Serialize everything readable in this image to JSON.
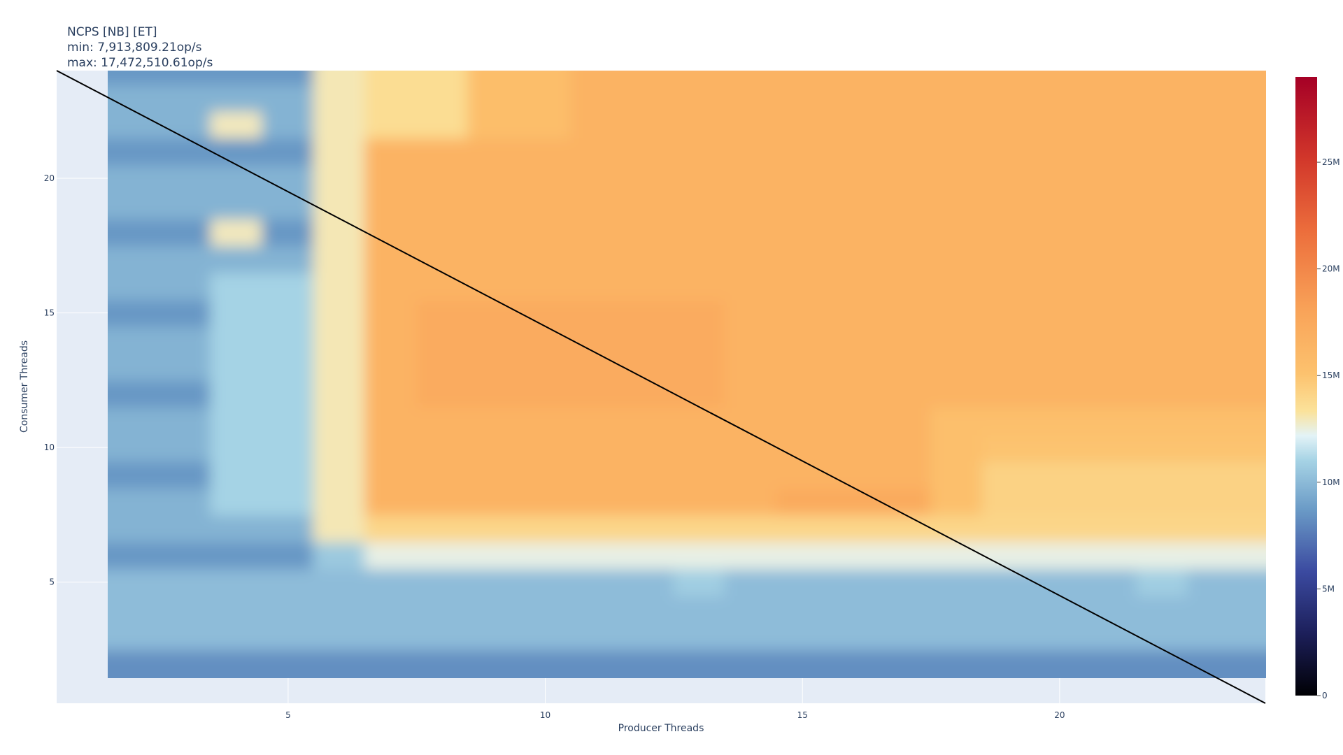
{
  "chart_data": {
    "type": "heatmap",
    "title_lines": [
      "NCPS [NB] [ET]",
      "min: 7,913,809.21op/s",
      "max: 17,472,510.61op/s"
    ],
    "xlabel": "Producer Threads",
    "ylabel": "Consumer Threads",
    "xlim": [
      0.5,
      24
    ],
    "ylim": [
      0.5,
      24
    ],
    "x_ticks": [
      5,
      10,
      15,
      20
    ],
    "y_ticks": [
      5,
      10,
      15,
      20
    ],
    "x_range": [
      1,
      24
    ],
    "y_range": [
      1,
      24
    ],
    "colorbar": {
      "zmin": 0,
      "zmax": 29000000,
      "ticks": [
        0,
        5000000,
        10000000,
        15000000,
        20000000,
        25000000
      ],
      "tick_labels": [
        "0",
        "5M",
        "10M",
        "15M",
        "20M",
        "25M"
      ],
      "colorscale": [
        [
          0.0,
          "#000004"
        ],
        [
          0.1,
          "#1c1f5a"
        ],
        [
          0.2,
          "#3b4aa0"
        ],
        [
          0.3,
          "#6a9ac6"
        ],
        [
          0.38,
          "#a6d3e5"
        ],
        [
          0.42,
          "#e3f3f7"
        ],
        [
          0.46,
          "#fbe29a"
        ],
        [
          0.52,
          "#fcc26e"
        ],
        [
          0.62,
          "#f9a459"
        ],
        [
          0.75,
          "#ec6e3c"
        ],
        [
          0.87,
          "#d1362a"
        ],
        [
          1.0,
          "#a50026"
        ]
      ]
    },
    "diagonal_line": {
      "x": [
        0.5,
        24
      ],
      "y": [
        24,
        0.5
      ],
      "color": "#000000"
    }
  }
}
